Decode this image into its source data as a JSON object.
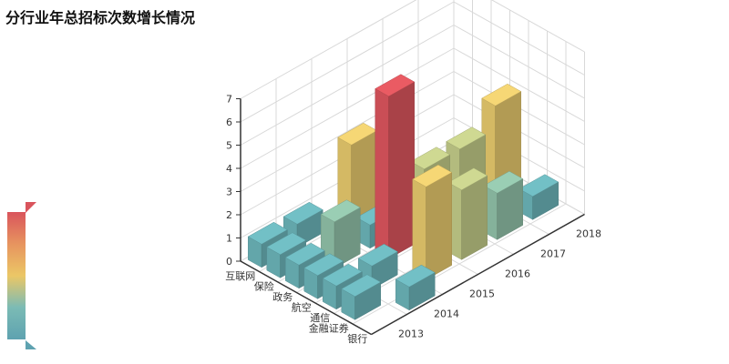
{
  "title": "分行业年总招标次数增长情况",
  "chart_data": {
    "type": "bar3d",
    "title": "分行业年总招标次数增长情况",
    "industries": [
      "银行",
      "金融证券",
      "通信",
      "航空",
      "政务",
      "保险",
      "互联网"
    ],
    "years": [
      "2013",
      "2014",
      "2015",
      "2016",
      "2017",
      "2018"
    ],
    "zlim": [
      0,
      7
    ],
    "z_ticks": [
      "0",
      "1",
      "2",
      "3",
      "4",
      "5",
      "6",
      "7"
    ],
    "grid": true,
    "values": [
      [
        0,
        1,
        0,
        0,
        0,
        0
      ],
      [
        1,
        0,
        4,
        3,
        2,
        1
      ],
      [
        1,
        1,
        0,
        0,
        0,
        0
      ],
      [
        1,
        0,
        7,
        3,
        3,
        4
      ],
      [
        1,
        2,
        1,
        0,
        0,
        0
      ],
      [
        1,
        0,
        4,
        0,
        0,
        0
      ],
      [
        1,
        1,
        0,
        0,
        0,
        0
      ]
    ],
    "visual_map": {
      "min": 0,
      "max": 7,
      "colors": [
        "#5ea2b0",
        "#6fb8ba",
        "#b9c98d",
        "#ebc766",
        "#e89060",
        "#d9545c"
      ]
    }
  }
}
